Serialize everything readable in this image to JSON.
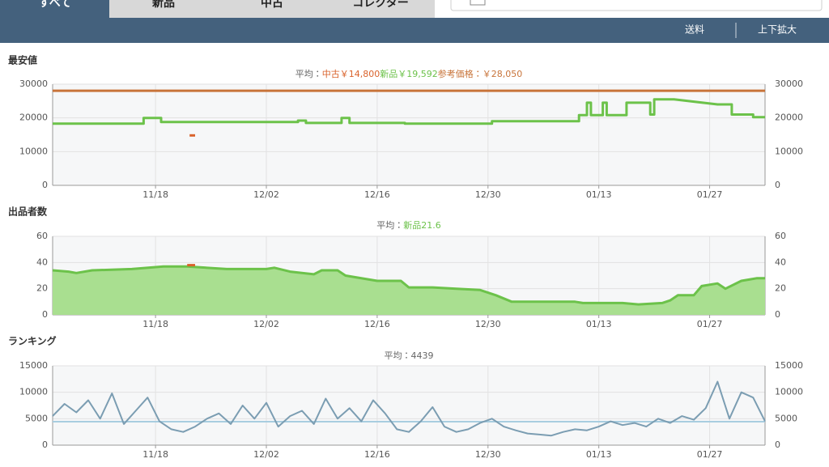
{
  "tabs": [
    "すべて",
    "新品",
    "中古",
    "コレクター"
  ],
  "toolbar": [
    "送料",
    "上下拡大"
  ],
  "chart_data": [
    {
      "type": "line",
      "title": "最安値",
      "average_prefix": "平均：",
      "xlim": [
        0,
        90
      ],
      "xticks": [
        {
          "value": 13,
          "label": "11/18"
        },
        {
          "value": 27,
          "label": "12/02"
        },
        {
          "value": 41,
          "label": "12/16"
        },
        {
          "value": 55,
          "label": "12/30"
        },
        {
          "value": 69,
          "label": "01/13"
        },
        {
          "value": 83,
          "label": "01/27"
        }
      ],
      "ylim": [
        0,
        30000
      ],
      "yticks": [
        0,
        10000,
        20000,
        30000
      ],
      "grid": true,
      "series": [
        {
          "name": "中古",
          "color": "#d9622b",
          "average": 14800,
          "average_label": "￥14,800",
          "x": [
            17.3,
            18.0
          ],
          "values": [
            14800,
            14800
          ]
        },
        {
          "name": "新品",
          "color": "#6cc24a",
          "average": 19592,
          "average_label": "￥19,592",
          "x": [
            0,
            11.5,
            11.5,
            13.7,
            13.7,
            31,
            31,
            32,
            32,
            36.5,
            36.5,
            37.5,
            37.5,
            44.5,
            44.5,
            55.5,
            55.5,
            66.5,
            66.5,
            67.5,
            67.5,
            68,
            68,
            69.5,
            69.5,
            70,
            70,
            72.5,
            72.5,
            75.5,
            75.5,
            76,
            76,
            78.5,
            84,
            85.8,
            85.8,
            88.5,
            88.5,
            90
          ],
          "values": [
            18300,
            18300,
            20000,
            20000,
            18800,
            18800,
            19200,
            19200,
            18500,
            18500,
            20000,
            20000,
            18500,
            18500,
            18300,
            18300,
            19000,
            19000,
            20800,
            20800,
            24500,
            24500,
            20800,
            20800,
            24500,
            24500,
            20800,
            20800,
            24500,
            24500,
            21000,
            21000,
            25500,
            25500,
            24000,
            24000,
            21000,
            21000,
            20200,
            20200
          ]
        },
        {
          "name": "参考価格",
          "color": "#c8743a",
          "average": 28050,
          "average_label": "：￥28,050",
          "x": [
            0,
            90
          ],
          "values": [
            28050,
            28050
          ]
        }
      ]
    },
    {
      "type": "line",
      "title": "出品者数",
      "average_prefix": "平均：",
      "xlim": [
        0,
        90
      ],
      "xticks": [
        {
          "value": 13,
          "label": "11/18"
        },
        {
          "value": 27,
          "label": "12/02"
        },
        {
          "value": 41,
          "label": "12/16"
        },
        {
          "value": 55,
          "label": "12/30"
        },
        {
          "value": 69,
          "label": "01/13"
        },
        {
          "value": 83,
          "label": "01/27"
        }
      ],
      "ylim": [
        0,
        60
      ],
      "yticks": [
        0,
        20,
        40,
        60
      ],
      "grid": true,
      "series": [
        {
          "name": "新品",
          "color": "#6cc24a",
          "area_color": "#a9df90",
          "average": 21.6,
          "x": [
            0,
            2,
            3,
            5,
            10,
            14,
            17,
            22,
            27,
            28,
            30,
            33,
            34,
            36,
            37,
            40,
            41,
            44,
            45,
            48,
            51,
            54,
            56,
            58,
            66,
            67,
            72,
            74,
            77,
            78,
            79,
            81,
            82,
            84,
            85,
            87,
            88,
            89,
            90
          ],
          "values": [
            34,
            33,
            32,
            34,
            35,
            37,
            37,
            35,
            35,
            36,
            33,
            31,
            34,
            34,
            30,
            27,
            26,
            26,
            21,
            21,
            20,
            19,
            15,
            10,
            10,
            9,
            9,
            8,
            9,
            11,
            15,
            15,
            22,
            24,
            20,
            26,
            27,
            28,
            28
          ]
        },
        {
          "color": "#d9622b",
          "x": [
            17,
            18
          ],
          "values": [
            38,
            38
          ]
        }
      ]
    },
    {
      "type": "line",
      "title": "ランキング",
      "average_prefix": "平均：",
      "average": 4439,
      "average_color": "#a8cde0",
      "xlim": [
        0,
        90
      ],
      "xticks": [
        {
          "value": 13,
          "label": "11/18"
        },
        {
          "value": 27,
          "label": "12/02"
        },
        {
          "value": 41,
          "label": "12/16"
        },
        {
          "value": 55,
          "label": "12/30"
        },
        {
          "value": 69,
          "label": "01/13"
        },
        {
          "value": 83,
          "label": "01/27"
        }
      ],
      "ylim": [
        0,
        15000
      ],
      "yticks": [
        0,
        5000,
        10000,
        15000
      ],
      "grid": true,
      "series": [
        {
          "color": "#7b9db2",
          "x": [
            0,
            1.5,
            3,
            4.5,
            6,
            7.5,
            9,
            10.5,
            12,
            13.5,
            15,
            16.5,
            18,
            19.5,
            21,
            22.5,
            24,
            25.5,
            27,
            28.5,
            30,
            31.5,
            33,
            34.5,
            36,
            37.5,
            39,
            40.5,
            42,
            43.5,
            45,
            46.5,
            48,
            49.5,
            51,
            52.5,
            54,
            55.5,
            57,
            58.5,
            60,
            61.5,
            63,
            64.5,
            66,
            67.5,
            69,
            70.5,
            72,
            73.5,
            75,
            76.5,
            78,
            79.5,
            81,
            82.5,
            84,
            85.5,
            87,
            88.5,
            90
          ],
          "values": [
            5500,
            7800,
            6200,
            8500,
            5000,
            9800,
            4000,
            6500,
            9000,
            4500,
            3000,
            2500,
            3500,
            5000,
            6000,
            4000,
            7500,
            5000,
            8000,
            3500,
            5500,
            6500,
            4000,
            8800,
            5000,
            7000,
            4500,
            8500,
            6000,
            3000,
            2500,
            4500,
            7200,
            3500,
            2500,
            3000,
            4200,
            5000,
            3500,
            2800,
            2200,
            2000,
            1800,
            2500,
            3000,
            2800,
            3500,
            4500,
            3800,
            4200,
            3500,
            5000,
            4200,
            5500,
            4800,
            7000,
            12000,
            5000,
            10000,
            9000,
            4500
          ]
        }
      ]
    }
  ]
}
